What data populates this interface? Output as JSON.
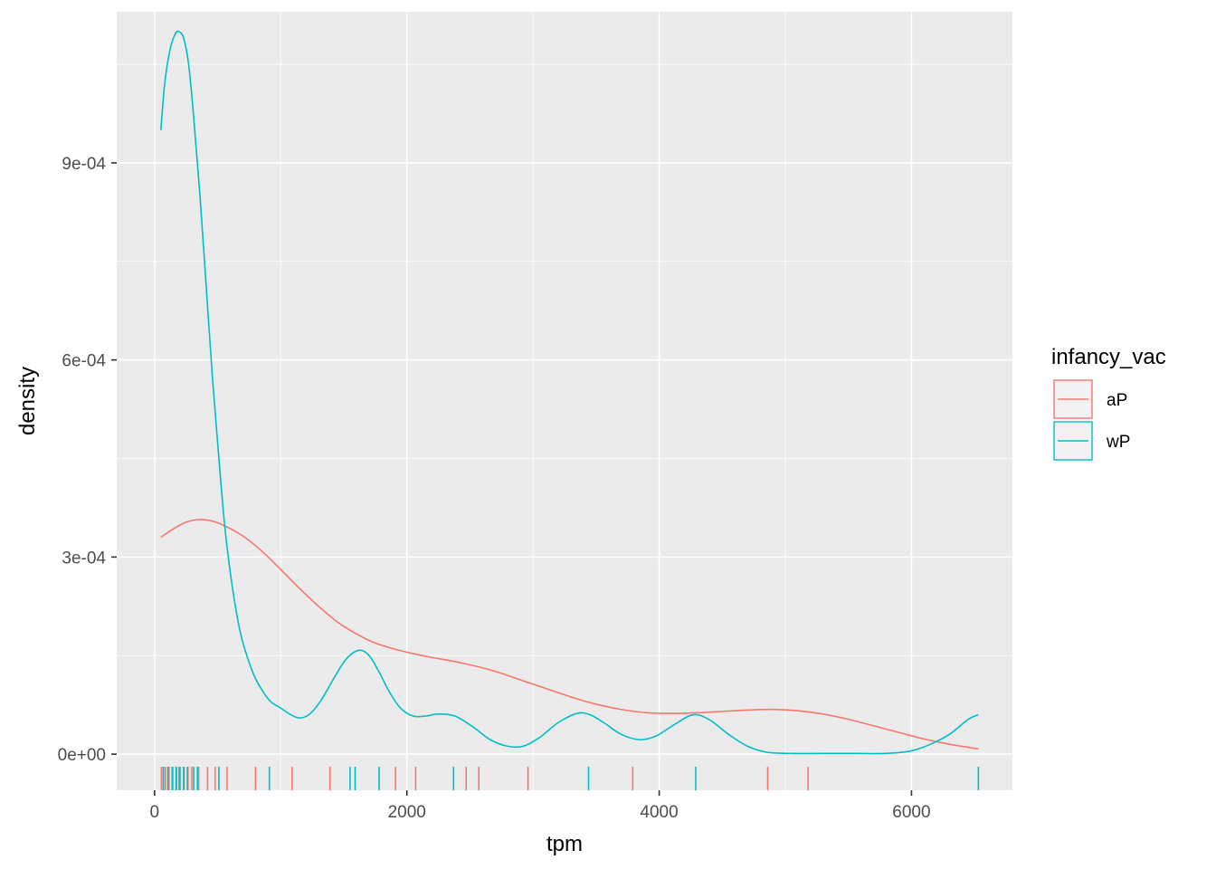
{
  "chart_data": {
    "type": "line",
    "subtype": "density with rug",
    "xlabel": "tpm",
    "ylabel": "density",
    "xlim": [
      -300,
      6800
    ],
    "ylim": [
      -5.5e-05,
      0.00113
    ],
    "x_ticks": [
      0,
      2000,
      4000,
      6000
    ],
    "x_tick_labels": [
      "0",
      "2000",
      "4000",
      "6000"
    ],
    "y_ticks": [
      0,
      0.0003,
      0.0006,
      0.0009
    ],
    "y_tick_labels": [
      "0e+00",
      "3e-04",
      "6e-04",
      "9e-04"
    ],
    "grid": true,
    "legend": {
      "title": "infancy_vac",
      "position": "right",
      "entries": [
        "aP",
        "wP"
      ]
    },
    "series": [
      {
        "name": "aP",
        "color": "#F8766D",
        "x": [
          50,
          150,
          250,
          350,
          450,
          550,
          700,
          850,
          1000,
          1150,
          1300,
          1450,
          1600,
          1750,
          1900,
          2050,
          2200,
          2350,
          2500,
          2700,
          2900,
          3100,
          3300,
          3500,
          3700,
          3900,
          4100,
          4300,
          4500,
          4700,
          4900,
          5100,
          5300,
          5500,
          5700,
          5900,
          6100,
          6300,
          6530
        ],
        "y": [
          0.00033,
          0.000343,
          0.000353,
          0.000357,
          0.000355,
          0.000348,
          0.000332,
          0.000309,
          0.000281,
          0.000252,
          0.000225,
          0.000201,
          0.000183,
          0.000169,
          0.00016,
          0.000153,
          0.000147,
          0.000142,
          0.000136,
          0.000126,
          0.000113,
          0.0001,
          8.7e-05,
          7.6e-05,
          6.8e-05,
          6.3e-05,
          6.2e-05,
          6.3e-05,
          6.5e-05,
          6.7e-05,
          6.8e-05,
          6.6e-05,
          6.1e-05,
          5.3e-05,
          4.3e-05,
          3.3e-05,
          2.3e-05,
          1.5e-05,
          8e-06
        ]
      },
      {
        "name": "wP",
        "color": "#00BFC4",
        "x": [
          50,
          80,
          120,
          160,
          190,
          230,
          270,
          310,
          360,
          410,
          460,
          510,
          560,
          620,
          680,
          740,
          800,
          860,
          920,
          1000,
          1080,
          1150,
          1230,
          1320,
          1420,
          1520,
          1620,
          1700,
          1780,
          1860,
          1950,
          2050,
          2150,
          2250,
          2380,
          2520,
          2660,
          2800,
          2920,
          3050,
          3200,
          3350,
          3450,
          3560,
          3700,
          3850,
          3980,
          4120,
          4270,
          4400,
          4550,
          4700,
          4850,
          5050,
          5300,
          5550,
          5800,
          6000,
          6150,
          6300,
          6450,
          6530
        ],
        "y": [
          0.00095,
          0.00102,
          0.00107,
          0.001095,
          0.0011,
          0.00109,
          0.00105,
          0.00097,
          0.00085,
          0.00071,
          0.00057,
          0.00045,
          0.00034,
          0.00025,
          0.000185,
          0.000145,
          0.000115,
          9.5e-05,
          8e-05,
          7e-05,
          6e-05,
          5.5e-05,
          6.1e-05,
          8.2e-05,
          0.000115,
          0.000145,
          0.000158,
          0.00015,
          0.000125,
          9.5e-05,
          7e-05,
          5.8e-05,
          5.8e-05,
          6.1e-05,
          5.8e-05,
          4.2e-05,
          2.2e-05,
          1.2e-05,
          1.2e-05,
          2.5e-05,
          4.8e-05,
          6.2e-05,
          6e-05,
          4.8e-05,
          3e-05,
          2.2e-05,
          2.8e-05,
          4.5e-05,
          6e-05,
          5.2e-05,
          3e-05,
          1.2e-05,
          3e-06,
          1e-06,
          1e-06,
          1e-06,
          1e-06,
          5e-06,
          1.5e-05,
          3e-05,
          5.3e-05,
          6e-05
        ]
      }
    ],
    "rug": [
      {
        "name": "aP",
        "color": "#F8766D",
        "x": [
          55,
          85,
          115,
          145,
          175,
          205,
          235,
          265,
          295,
          350,
          420,
          480,
          575,
          800,
          1090,
          1390,
          1910,
          2070,
          2470,
          2570,
          2960,
          3790,
          4860,
          5180
        ]
      },
      {
        "name": "wP",
        "color": "#00BFC4",
        "x": [
          70,
          105,
          140,
          170,
          195,
          230,
          260,
          310,
          340,
          510,
          910,
          1550,
          1590,
          1780,
          2370,
          3440,
          4290,
          6530
        ]
      }
    ]
  }
}
